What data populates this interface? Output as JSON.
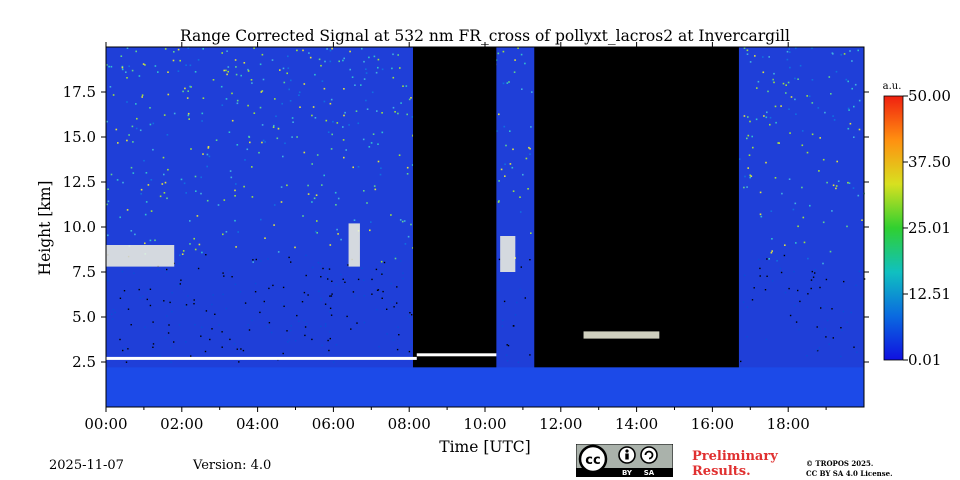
{
  "chart_data": {
    "type": "heatmap",
    "title": "Range Corrected Signal at 532 nm FR_cross of pollyxt_lacros2 at Invercargill",
    "xlabel": "Time [UTC]",
    "ylabel": "Height [km]",
    "x_ticks": [
      "00:00",
      "02:00",
      "04:00",
      "06:00",
      "08:00",
      "10:00",
      "12:00",
      "14:00",
      "16:00",
      "18:00"
    ],
    "x_tick_hours": [
      0,
      2,
      4,
      6,
      8,
      10,
      12,
      14,
      16,
      18
    ],
    "xlim_hours": [
      0,
      20
    ],
    "y_ticks": [
      "2.5",
      "5.0",
      "7.5",
      "10.0",
      "12.5",
      "15.0",
      "17.5"
    ],
    "y_tick_values": [
      2.5,
      5.0,
      7.5,
      10.0,
      12.5,
      15.0,
      17.5
    ],
    "ylim_km": [
      0,
      20
    ],
    "colorbar": {
      "unit": "a.u.",
      "tick_labels": [
        "50.00",
        "37.50",
        "25.01",
        "12.51",
        "0.01"
      ],
      "tick_values": [
        50.0,
        37.5,
        25.01,
        12.51,
        0.01
      ],
      "range": [
        0.01,
        50.0
      ],
      "colormap": [
        "#1010e0",
        "#0a6ae0",
        "#10c0c0",
        "#30d030",
        "#d8e020",
        "#ff9010",
        "#f02010"
      ]
    },
    "no_data_intervals_hours": [
      [
        8.1,
        10.3
      ],
      [
        11.3,
        16.7
      ]
    ],
    "features": [
      {
        "name": "boundary layer",
        "t": [
          0,
          20
        ],
        "height_km": [
          0,
          2.2
        ]
      },
      {
        "name": "layer top",
        "t": [
          0,
          8.2
        ],
        "height_km": 2.7
      },
      {
        "name": "layer top",
        "t": [
          8.2,
          10.3
        ],
        "height_km": 2.9
      },
      {
        "name": "cloud layer",
        "t": [
          12.6,
          14.6
        ],
        "height_km": 4.0
      },
      {
        "name": "cloud layer",
        "t": [
          10.4,
          10.8
        ],
        "height_km": [
          7.5,
          9.5
        ]
      },
      {
        "name": "cloud layer",
        "t": [
          0.0,
          1.8
        ],
        "height_km": [
          7.8,
          9.0
        ]
      },
      {
        "name": "cloud layer",
        "t": [
          6.4,
          6.7
        ],
        "height_km": [
          7.8,
          10.2
        ]
      }
    ]
  },
  "footer": {
    "date": "2025-11-07",
    "version": "Version: 4.0",
    "preliminary": [
      "Preliminary",
      "Results."
    ],
    "copyright": [
      "© TROPOS 2025.",
      "CC BY SA 4.0 License."
    ],
    "license_badge": {
      "cc": "cc",
      "by": "BY",
      "sa": "SA"
    }
  }
}
